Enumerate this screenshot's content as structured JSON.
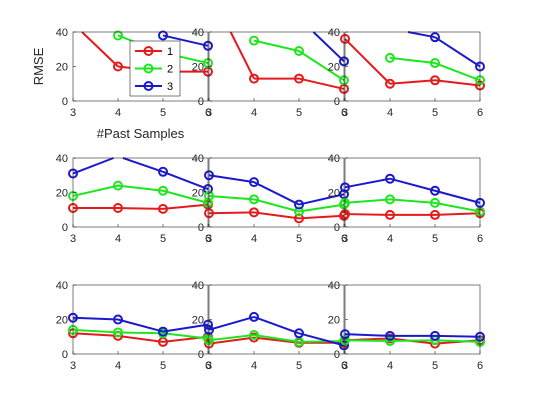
{
  "chart_data": [
    {
      "type": "line",
      "position": "row-1-col-1",
      "x": [
        3,
        4,
        5,
        6
      ],
      "xlim": [
        3,
        6
      ],
      "ylim": [
        0,
        40
      ],
      "xticks": [
        "3",
        "4",
        "5",
        "6"
      ],
      "yticks": [
        "0",
        "20",
        "40"
      ],
      "ylabel": "RMSE",
      "xlabel": "#Past Samples",
      "series": [
        {
          "name": "1",
          "color": "#e41a1c",
          "values": [
            45,
            20,
            17,
            17
          ]
        },
        {
          "name": "2",
          "color": "#1ee61e",
          "values": [
            null,
            38,
            28,
            22
          ]
        },
        {
          "name": "3",
          "color": "#1a1acc",
          "values": [
            null,
            null,
            38,
            32
          ]
        }
      ],
      "legend": {
        "placement": "center-inside",
        "entries": [
          "1",
          "2",
          "3"
        ]
      }
    },
    {
      "type": "line",
      "position": "row-1-col-2",
      "x": [
        3,
        4,
        5,
        6
      ],
      "xlim": [
        3,
        6
      ],
      "ylim": [
        0,
        40
      ],
      "xticks": [
        "3",
        "4",
        "5",
        "6"
      ],
      "yticks": [
        "0",
        "20",
        "40"
      ],
      "series": [
        {
          "color": "#e41a1c",
          "values": [
            65,
            13,
            13,
            7
          ]
        },
        {
          "color": "#1ee61e",
          "values": [
            null,
            35,
            29,
            12
          ]
        },
        {
          "color": "#1a1acc",
          "values": [
            null,
            null,
            48,
            23
          ]
        }
      ]
    },
    {
      "type": "line",
      "position": "row-1-col-3",
      "x": [
        3,
        4,
        5,
        6
      ],
      "xlim": [
        3,
        6
      ],
      "ylim": [
        0,
        40
      ],
      "xticks": [
        "3",
        "4",
        "5",
        "6"
      ],
      "yticks": [
        "0",
        "20",
        "40"
      ],
      "series": [
        {
          "color": "#e41a1c",
          "values": [
            36,
            10,
            12,
            9
          ]
        },
        {
          "color": "#1ee61e",
          "values": [
            null,
            25,
            22,
            12
          ]
        },
        {
          "color": "#1a1acc",
          "values": [
            null,
            42,
            37,
            20
          ]
        }
      ]
    },
    {
      "type": "line",
      "position": "row-2-col-1",
      "x": [
        3,
        4,
        5,
        6
      ],
      "xlim": [
        3,
        6
      ],
      "ylim": [
        0,
        40
      ],
      "xticks": [
        "3",
        "4",
        "5",
        "6"
      ],
      "yticks": [
        "0",
        "20",
        "40"
      ],
      "series": [
        {
          "color": "#e41a1c",
          "values": [
            11,
            11,
            10.5,
            13
          ]
        },
        {
          "color": "#1ee61e",
          "values": [
            18,
            24,
            21,
            14
          ]
        },
        {
          "color": "#1a1acc",
          "values": [
            31,
            41,
            32,
            22
          ]
        }
      ]
    },
    {
      "type": "line",
      "position": "row-2-col-2",
      "x": [
        3,
        4,
        5,
        6
      ],
      "xlim": [
        3,
        6
      ],
      "ylim": [
        0,
        40
      ],
      "xticks": [
        "3",
        "4",
        "5",
        "6"
      ],
      "yticks": [
        "0",
        "20",
        "40"
      ],
      "series": [
        {
          "color": "#e41a1c",
          "values": [
            8,
            8.5,
            5,
            6.5
          ]
        },
        {
          "color": "#1ee61e",
          "values": [
            18,
            16,
            9,
            13
          ]
        },
        {
          "color": "#1a1acc",
          "values": [
            30,
            26,
            13,
            19
          ]
        }
      ]
    },
    {
      "type": "line",
      "position": "row-2-col-3",
      "x": [
        3,
        4,
        5,
        6
      ],
      "xlim": [
        3,
        6
      ],
      "ylim": [
        0,
        40
      ],
      "xticks": [
        "3",
        "4",
        "5",
        "6"
      ],
      "yticks": [
        "0",
        "20",
        "40"
      ],
      "series": [
        {
          "color": "#e41a1c",
          "values": [
            7.5,
            7,
            7,
            8
          ]
        },
        {
          "color": "#1ee61e",
          "values": [
            14,
            16,
            14,
            9
          ]
        },
        {
          "color": "#1a1acc",
          "values": [
            23,
            28,
            21,
            14
          ]
        }
      ]
    },
    {
      "type": "line",
      "position": "row-3-col-1",
      "x": [
        3,
        4,
        5,
        6
      ],
      "xlim": [
        3,
        6
      ],
      "ylim": [
        0,
        40
      ],
      "xticks": [
        "3",
        "4",
        "5",
        "6"
      ],
      "yticks": [
        "0",
        "20",
        "40"
      ],
      "series": [
        {
          "color": "#e41a1c",
          "values": [
            12,
            10.5,
            7,
            10
          ]
        },
        {
          "color": "#1ee61e",
          "values": [
            14,
            12.5,
            12,
            9
          ]
        },
        {
          "color": "#1a1acc",
          "values": [
            21,
            20,
            13,
            17
          ]
        }
      ]
    },
    {
      "type": "line",
      "position": "row-3-col-2",
      "x": [
        3,
        4,
        5,
        6
      ],
      "xlim": [
        3,
        6
      ],
      "ylim": [
        0,
        40
      ],
      "xticks": [
        "3",
        "4",
        "5",
        "6"
      ],
      "yticks": [
        "0",
        "20",
        "40"
      ],
      "series": [
        {
          "color": "#e41a1c",
          "values": [
            6,
            9.5,
            6.5,
            6.5
          ]
        },
        {
          "color": "#1ee61e",
          "values": [
            8,
            11,
            7,
            7.5
          ]
        },
        {
          "color": "#1a1acc",
          "values": [
            14,
            21.5,
            12,
            5
          ]
        }
      ]
    },
    {
      "type": "line",
      "position": "row-3-col-3",
      "x": [
        3,
        4,
        5,
        6
      ],
      "xlim": [
        3,
        6
      ],
      "ylim": [
        0,
        40
      ],
      "xticks": [
        "3",
        "4",
        "5",
        "6"
      ],
      "yticks": [
        "0",
        "20",
        "40"
      ],
      "series": [
        {
          "color": "#e41a1c",
          "values": [
            8,
            9,
            6,
            8
          ]
        },
        {
          "color": "#1ee61e",
          "values": [
            8,
            7.5,
            8,
            7
          ]
        },
        {
          "color": "#1a1acc",
          "values": [
            11.5,
            10.5,
            10.5,
            10
          ]
        }
      ]
    }
  ]
}
